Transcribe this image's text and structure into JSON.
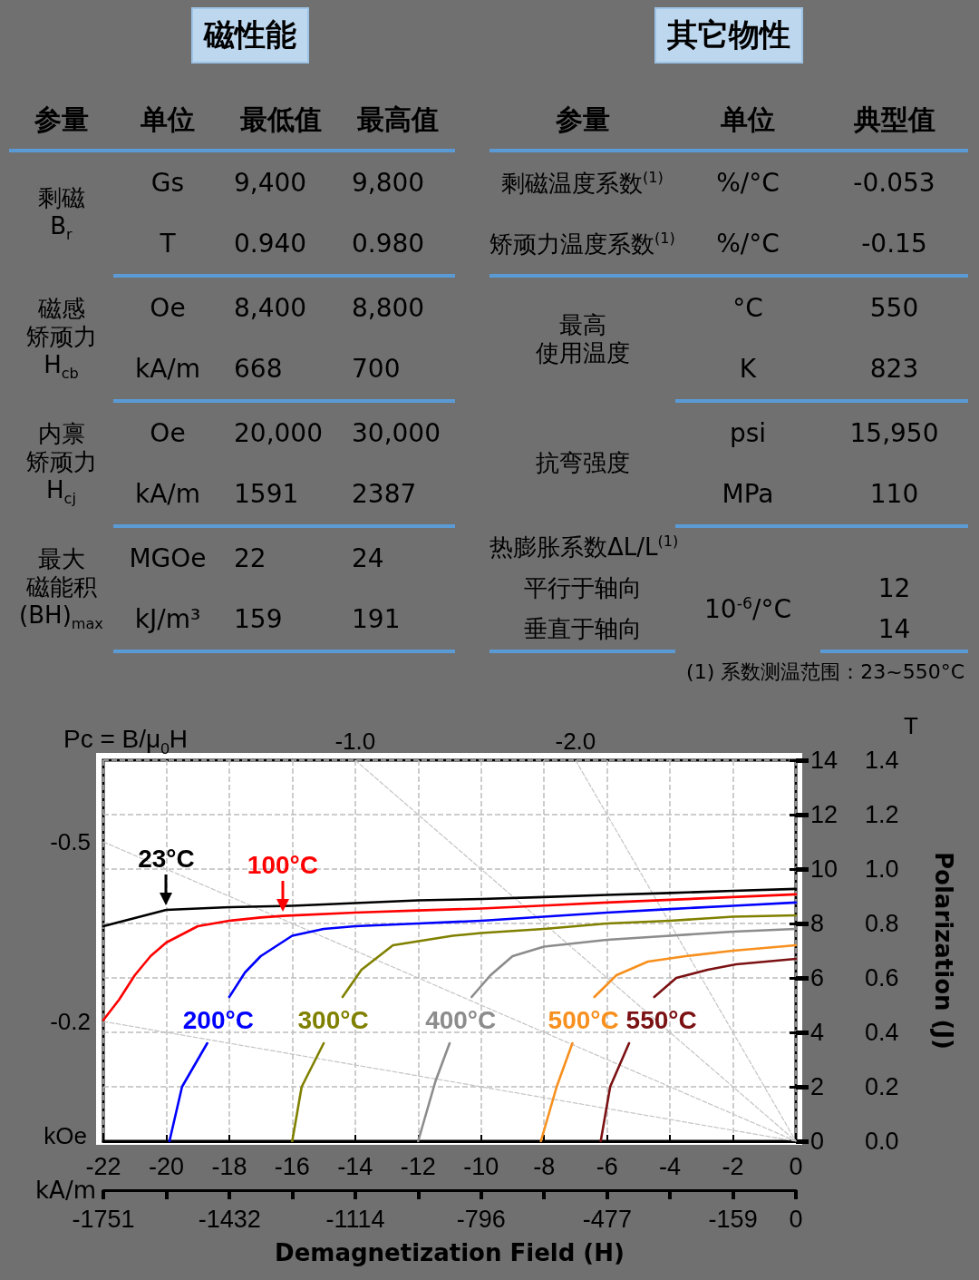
{
  "chart_data": [
    {
      "type": "other",
      "title": "磁性能",
      "categories": [
        "参量",
        "单位",
        "最低值",
        "最高值"
      ],
      "cell_labels": [
        [
          [
            [
              "剩磁",
              "B$_{r}$"
            ],
            "Gs",
            "9,400",
            "9,800"
          ],
          [
            null,
            "T",
            "0.940",
            "0.980"
          ]
        ],
        [
          [
            [
              "磁感",
              "矫顽力",
              "H$_{cb}$"
            ],
            "Oe",
            "8,400",
            "8,800"
          ],
          [
            null,
            "kA/m",
            "668",
            "700"
          ]
        ],
        [
          [
            [
              "内禀",
              "矫顽力",
              "H$_{cj}$"
            ],
            "Oe",
            "20,000",
            "30,000"
          ],
          [
            null,
            "kA/m",
            "1591",
            "2387"
          ]
        ],
        [
          [
            [
              "最大",
              "磁能积",
              "(BH)$_{max}$"
            ],
            "MGOe",
            "22",
            "24"
          ],
          [
            null,
            "kJ/m³",
            "159",
            "191"
          ]
        ]
      ]
    },
    {
      "type": "other",
      "title": "其它物性",
      "categories": [
        "参量",
        "单位",
        "典型值"
      ],
      "cell_labels": [
        [
          [
            "剩磁温度系数$^{(1)}$",
            "%/°C",
            "-0.053"
          ],
          [
            "矫顽力温度系数$^{(1)}$",
            "%/°C",
            "-0.15"
          ]
        ],
        [
          [
            [
              "最高",
              "使用温度"
            ],
            "°C",
            "550"
          ],
          [
            null,
            "K",
            "823"
          ]
        ],
        [
          [
            "抗弯强度",
            "psi",
            "15,950"
          ],
          [
            null,
            "MPa",
            "110"
          ]
        ],
        [
          [
            "热膨胀系数ΔL/L$^{(1)}$",
            null,
            null
          ],
          [
            "平行于轴向",
            "10$^{-6}$/°C",
            "12"
          ],
          [
            "垂直于轴向",
            null,
            "14"
          ]
        ]
      ],
      "annotations": [
        "(1) 系数测温范围：23~550°C"
      ]
    },
    {
      "type": "line",
      "xlabel": "Demagnetization Field (H)",
      "x2label": "kA/m",
      "ylabel": "Polarization (J)",
      "xlim": [
        -22,
        0
      ],
      "xticks": [
        -22,
        -20,
        -18,
        -16,
        -14,
        -12,
        -10,
        -8,
        -6,
        -4,
        -2,
        0
      ],
      "x2lim": [
        -1751,
        0
      ],
      "x2ticks": [
        -1751,
        {
          "value": -1592,
          "label": null
        },
        -1432,
        {
          "value": -1273,
          "label": null
        },
        -1114,
        {
          "value": -955,
          "label": null
        },
        -796,
        {
          "value": -637,
          "label": null
        },
        -477,
        {
          "value": -318,
          "label": null
        },
        -159,
        0
      ],
      "ylim": [
        0,
        1.4
      ],
      "yticks": [
        {
          "value": 0,
          "label": "0.0"
        },
        0.2,
        0.4,
        0.6,
        0.8,
        {
          "value": 1,
          "label": "1.0"
        },
        1.2,
        1.4
      ],
      "y2lim": [
        0,
        14
      ],
      "y2ticks": [
        0,
        2,
        4,
        6,
        8,
        10,
        12,
        14
      ],
      "grid": true,
      "marker": "none",
      "series": [
        {
          "color": "#c4c4c4",
          "line_style": "dashed",
          "x": [
            -22,
            0
          ],
          "values": [
            1.1,
            0
          ]
        },
        {
          "color": "#c4c4c4",
          "line_style": "dashed",
          "x": [
            -22,
            0
          ],
          "values": [
            0.44,
            0
          ]
        },
        {
          "color": "#c4c4c4",
          "line_style": "dashed",
          "x": [
            -14,
            0
          ],
          "values": [
            1.4,
            0
          ]
        },
        {
          "color": "#c4c4c4",
          "line_style": "dashed",
          "x": [
            -7,
            0
          ],
          "values": [
            1.4,
            0
          ]
        },
        {
          "color": "#000000",
          "x": [
            -22,
            -21,
            -20,
            -18,
            -16,
            -14,
            -12,
            -10,
            -8,
            -6,
            -4,
            -2,
            0
          ],
          "values": [
            0.79,
            0.82,
            0.85,
            0.86,
            0.865,
            0.875,
            0.885,
            0.89,
            0.897,
            0.905,
            0.912,
            0.92,
            0.927
          ]
        },
        {
          "color": "#ff0000",
          "x": [
            -22,
            -21.5,
            -21,
            -20.5,
            -20,
            -19,
            -18,
            -17,
            -16.3,
            -14,
            -12,
            -10,
            -8,
            -6,
            -4,
            -2,
            0
          ],
          "values": [
            0.445,
            0.52,
            0.61,
            0.68,
            0.73,
            0.79,
            0.81,
            0.822,
            0.828,
            0.84,
            0.848,
            0.855,
            0.866,
            0.877,
            0.887,
            0.897,
            0.907
          ]
        },
        {
          "name": "200°C",
          "color": "#0000ff",
          "x": [
            -19.9,
            -19.5,
            -18.7,
            -18.35,
            -18,
            -17.5,
            -17,
            -16,
            -15,
            -14,
            -12,
            -10,
            -8,
            -6,
            -4,
            -2,
            0
          ],
          "values": [
            0,
            0.2,
            0.36,
            null,
            0.53,
            0.62,
            0.68,
            0.755,
            0.78,
            0.79,
            0.8,
            0.81,
            0.825,
            0.84,
            0.853,
            0.865,
            0.877
          ]
        },
        {
          "name": "300°C",
          "color": "#808000",
          "x": [
            -16,
            -15.7,
            -15,
            -14.7,
            -14.4,
            -13.8,
            -12.8,
            -10.9,
            -10,
            -8,
            -6,
            -4,
            -2,
            0
          ],
          "values": [
            0,
            0.2,
            0.36,
            null,
            0.53,
            0.63,
            0.72,
            0.755,
            0.765,
            0.78,
            0.8,
            0.81,
            0.825,
            0.83
          ]
        },
        {
          "name": "400°C",
          "color": "#8c8c8c",
          "x": [
            -12,
            -11.45,
            -11,
            -10.65,
            -10.3,
            -9.7,
            -9,
            -8,
            -6,
            -4,
            -2,
            0
          ],
          "values": [
            0,
            0.22,
            0.36,
            null,
            0.53,
            0.61,
            0.68,
            0.715,
            0.74,
            0.755,
            0.77,
            0.78
          ]
        },
        {
          "name": "500°C",
          "color": "#f7901e",
          "x": [
            -8.1,
            -7.6,
            -7.1,
            -6.75,
            -6.4,
            -5.7,
            -4.7,
            -3.5,
            -2,
            0
          ],
          "values": [
            0,
            0.2,
            0.36,
            null,
            0.53,
            0.61,
            0.66,
            0.68,
            0.7,
            0.72
          ]
        },
        {
          "name": "550°C",
          "color": "#7b1113",
          "x": [
            -6.2,
            -5.9,
            -5.3,
            -4.9,
            -4.5,
            -3.8,
            -2.8,
            -1.9,
            0
          ],
          "values": [
            0,
            0.2,
            0.36,
            null,
            0.53,
            0.6,
            0.63,
            0.65,
            0.67
          ]
        }
      ],
      "annotations": [
        "Pc = B/μ$_{0}$H",
        "kOe",
        "T",
        {
          "text": "-0.5",
          "x": -22,
          "y": 1.1
        },
        {
          "text": "-0.2",
          "x": -22,
          "y": 0.44
        },
        {
          "text": "-1.0",
          "x": -14,
          "y": 1.4
        },
        {
          "text": "-2.0",
          "x": -7,
          "y": 1.4
        },
        {
          "text": "23°C",
          "x": -20,
          "y": 0.85
        },
        {
          "text": "100°C",
          "x": -16.3,
          "y": 0.828
        }
      ]
    }
  ]
}
